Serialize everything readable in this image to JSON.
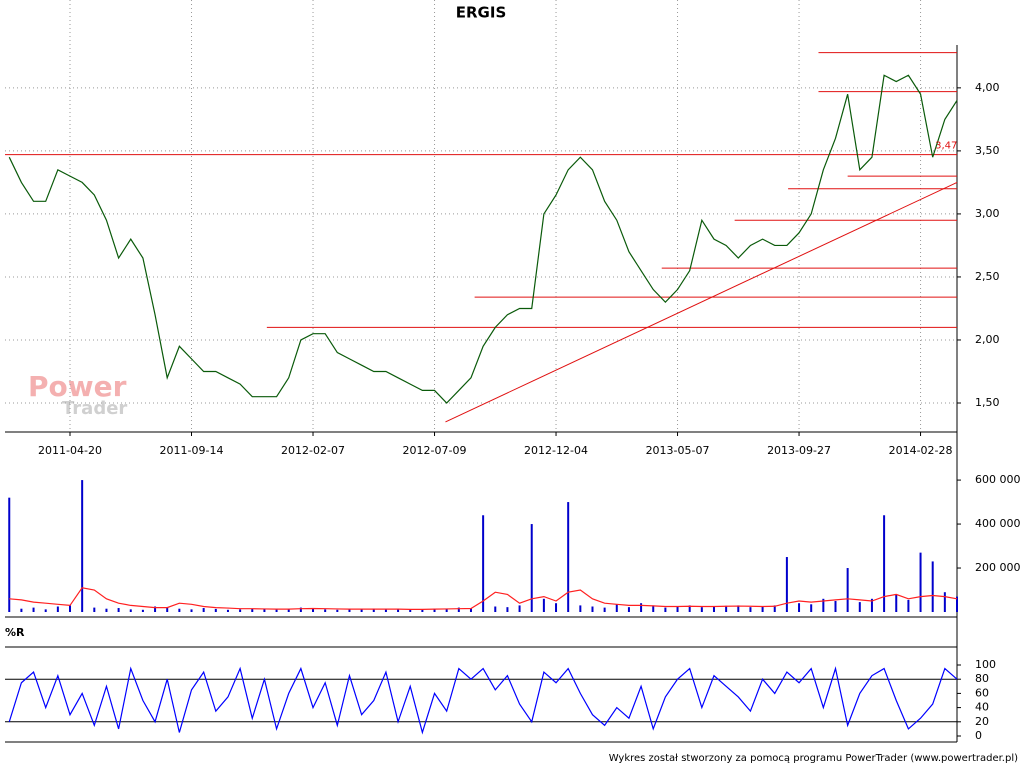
{
  "chart_data": [
    {
      "type": "line",
      "title": "ERGIS",
      "color": "#0a5a0a",
      "grid": true,
      "xlim": [
        -0.35,
        78
      ],
      "xticks": [
        {
          "value": 5,
          "label": "2011-04-20"
        },
        {
          "value": 15,
          "label": "2011-09-14"
        },
        {
          "value": 25,
          "label": "2012-02-07"
        },
        {
          "value": 35,
          "label": "2012-07-09"
        },
        {
          "value": 45,
          "label": "2012-12-04"
        },
        {
          "value": 55,
          "label": "2013-05-07"
        },
        {
          "value": 65,
          "label": "2013-09-27"
        },
        {
          "value": 75,
          "label": "2014-02-28"
        }
      ],
      "ylim": [
        1.27,
        4.34
      ],
      "yticks": [
        {
          "value": 1.5,
          "label": "1,50"
        },
        {
          "value": 2.0,
          "label": "2,00"
        },
        {
          "value": 2.5,
          "label": "2,50"
        },
        {
          "value": 3.0,
          "label": "3,00"
        },
        {
          "value": 3.5,
          "label": "3,50"
        },
        {
          "value": 4.0,
          "label": "4,00"
        }
      ],
      "values": [
        3.45,
        3.25,
        3.1,
        3.1,
        3.35,
        3.3,
        3.25,
        3.15,
        2.95,
        2.65,
        2.8,
        2.65,
        2.2,
        1.7,
        1.95,
        1.85,
        1.75,
        1.75,
        1.7,
        1.65,
        1.55,
        1.55,
        1.55,
        1.7,
        2.0,
        2.05,
        2.05,
        1.9,
        1.85,
        1.8,
        1.75,
        1.75,
        1.7,
        1.65,
        1.6,
        1.6,
        1.5,
        1.6,
        1.7,
        1.95,
        2.1,
        2.2,
        2.25,
        2.25,
        3.0,
        3.15,
        3.35,
        3.45,
        3.35,
        3.1,
        2.95,
        2.7,
        2.55,
        2.4,
        2.3,
        2.4,
        2.55,
        2.95,
        2.8,
        2.75,
        2.65,
        2.75,
        2.8,
        2.75,
        2.75,
        2.85,
        3.0,
        3.35,
        3.6,
        3.95,
        3.35,
        3.45,
        4.1,
        4.05,
        4.1,
        3.95,
        3.45,
        3.75,
        3.9
      ],
      "line_color": "#e01010",
      "hlines": [
        {
          "y": 4.28,
          "x0": 66.6
        },
        {
          "y": 3.97,
          "x0": 66.6
        },
        {
          "y": 3.47,
          "x0": -0.35
        },
        {
          "y": 3.3,
          "x0": 69
        },
        {
          "y": 3.2,
          "x0": 64.1
        },
        {
          "y": 2.95,
          "x0": 59.7
        },
        {
          "y": 2.57,
          "x0": 53.7
        },
        {
          "y": 2.34,
          "x0": 38.3
        },
        {
          "y": 2.1,
          "x0": 21.2
        }
      ],
      "trend": {
        "x": [
          35.9,
          78
        ],
        "y": [
          1.35,
          3.25
        ]
      },
      "annotation": {
        "text": "3,47",
        "x": 76.2,
        "y": 3.47
      },
      "watermark": [
        "Power",
        "Trader"
      ]
    },
    {
      "type": "bar",
      "color": "#0000cc",
      "xlim": [
        -0.35,
        78
      ],
      "ylim": [
        0,
        614000
      ],
      "yticks": [
        {
          "value": 200000,
          "label": "200 000"
        },
        {
          "value": 400000,
          "label": "400 000"
        },
        {
          "value": 600000,
          "label": "600 000"
        }
      ],
      "values": [
        520000,
        15000,
        20000,
        12000,
        25000,
        30000,
        600000,
        20000,
        15000,
        18000,
        12000,
        10000,
        25000,
        20000,
        15000,
        12000,
        18000,
        14000,
        10000,
        12000,
        15000,
        13000,
        11000,
        14000,
        20000,
        18000,
        12000,
        10000,
        14000,
        12000,
        16000,
        11000,
        13000,
        12000,
        10000,
        14000,
        15000,
        20000,
        18000,
        440000,
        25000,
        22000,
        30000,
        400000,
        60000,
        40000,
        500000,
        30000,
        25000,
        20000,
        35000,
        22000,
        40000,
        30000,
        20000,
        25000,
        30000,
        22000,
        25000,
        28000,
        30000,
        22000,
        25000,
        30000,
        250000,
        40000,
        35000,
        60000,
        50000,
        200000,
        45000,
        60000,
        440000,
        80000,
        55000,
        270000,
        230000,
        90000,
        70000
      ],
      "average": {
        "color": "#ff2020",
        "values": [
          60000,
          55000,
          45000,
          40000,
          35000,
          30000,
          110000,
          100000,
          60000,
          40000,
          30000,
          25000,
          20000,
          20000,
          40000,
          35000,
          25000,
          20000,
          18000,
          15000,
          15000,
          14000,
          13000,
          13000,
          15000,
          16000,
          15000,
          14000,
          13000,
          13000,
          13000,
          13000,
          13000,
          12000,
          12000,
          13000,
          14000,
          15000,
          16000,
          50000,
          90000,
          80000,
          40000,
          60000,
          70000,
          50000,
          90000,
          100000,
          60000,
          40000,
          35000,
          30000,
          30000,
          28000,
          25000,
          25000,
          26000,
          25000,
          25000,
          26000,
          27000,
          26000,
          25000,
          26000,
          40000,
          50000,
          45000,
          50000,
          55000,
          60000,
          55000,
          50000,
          70000,
          80000,
          60000,
          70000,
          75000,
          70000,
          60000
        ]
      }
    },
    {
      "type": "line",
      "title": "%R",
      "color": "#0000ff",
      "xlim": [
        -0.35,
        78
      ],
      "ylim": [
        0,
        100
      ],
      "yticks": [
        0,
        20,
        40,
        60,
        80,
        100
      ],
      "levels": [
        20,
        80
      ],
      "values": [
        20,
        75,
        90,
        40,
        85,
        30,
        60,
        15,
        70,
        10,
        95,
        50,
        20,
        80,
        5,
        65,
        90,
        35,
        55,
        95,
        25,
        80,
        10,
        60,
        95,
        40,
        75,
        15,
        85,
        30,
        50,
        90,
        20,
        70,
        5,
        60,
        35,
        95,
        80,
        95,
        65,
        85,
        45,
        20,
        90,
        75,
        95,
        60,
        30,
        15,
        40,
        25,
        70,
        10,
        55,
        80,
        95,
        40,
        85,
        70,
        55,
        35,
        80,
        60,
        90,
        75,
        95,
        40,
        95,
        15,
        60,
        85,
        95,
        50,
        10,
        25,
        45,
        95,
        80
      ]
    }
  ],
  "footer": "Wykres został stworzony za pomocą programu PowerTrader (www.powertrader.pl)"
}
